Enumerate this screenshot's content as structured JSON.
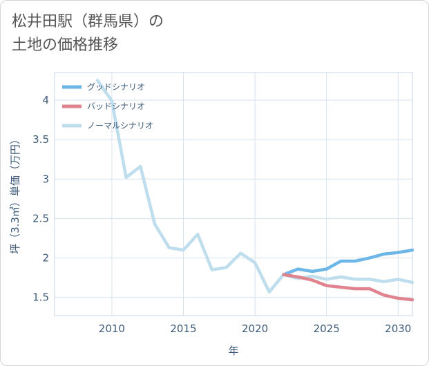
{
  "title_line1": "松井田駅（群馬県）の",
  "title_line2": "土地の価格推移",
  "chart_data": {
    "type": "line",
    "title": "松井田駅（群馬県）の土地の価格推移",
    "xlabel": "年",
    "ylabel": "坪（3.3㎡）単価（万円）",
    "xlim": [
      2006,
      2031
    ],
    "ylim": [
      1.27,
      4.35
    ],
    "xticks": [
      2010,
      2015,
      2020,
      2025,
      2030
    ],
    "yticks": [
      1.5,
      2,
      2.5,
      3,
      3.5,
      4
    ],
    "legend_position": "top-left",
    "series": [
      {
        "name": "グッドシナリオ",
        "color": "#6cb6e8",
        "x": [
          2022,
          2023,
          2024,
          2025,
          2026,
          2027,
          2028,
          2029,
          2030,
          2031
        ],
        "y": [
          1.79,
          1.86,
          1.83,
          1.86,
          1.96,
          1.96,
          2.0,
          2.05,
          2.07,
          2.1
        ]
      },
      {
        "name": "バッドシナリオ",
        "color": "#e0838f",
        "x": [
          2022,
          2023,
          2024,
          2025,
          2026,
          2027,
          2028,
          2029,
          2030,
          2031
        ],
        "y": [
          1.79,
          1.76,
          1.72,
          1.65,
          1.63,
          1.61,
          1.61,
          1.53,
          1.49,
          1.47
        ]
      },
      {
        "name": "ノーマルシナリオ",
        "color": "#bedded",
        "x": [
          2009,
          2010,
          2011,
          2012,
          2013,
          2014,
          2015,
          2016,
          2017,
          2018,
          2019,
          2020,
          2021,
          2022,
          2023,
          2024,
          2025,
          2026,
          2027,
          2028,
          2029,
          2030,
          2031
        ],
        "y": [
          4.25,
          3.99,
          3.02,
          3.16,
          2.43,
          2.13,
          2.1,
          2.3,
          1.85,
          1.88,
          2.06,
          1.94,
          1.57,
          1.79,
          1.74,
          1.77,
          1.73,
          1.76,
          1.73,
          1.73,
          1.7,
          1.73,
          1.69
        ]
      }
    ]
  }
}
